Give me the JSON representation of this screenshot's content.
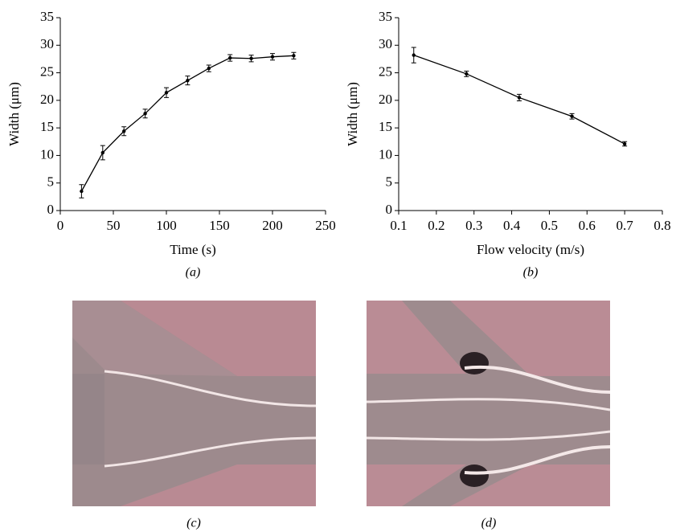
{
  "chart_data": [
    {
      "type": "line",
      "x_label": "Time (s)",
      "y_label": "Width (μm)",
      "caption": "(a)",
      "x": [
        20,
        40,
        60,
        80,
        100,
        120,
        140,
        160,
        180,
        200,
        220
      ],
      "values": [
        3.5,
        10.5,
        14.4,
        17.6,
        21.4,
        23.6,
        25.8,
        27.7,
        27.6,
        27.9,
        28.1
      ],
      "errors": [
        1.2,
        1.3,
        0.8,
        0.8,
        0.9,
        0.8,
        0.6,
        0.6,
        0.6,
        0.6,
        0.6
      ],
      "color": "#000000",
      "xlim": [
        0,
        250
      ],
      "xticks": [
        0,
        50,
        100,
        150,
        200,
        250
      ],
      "ylim": [
        0,
        35
      ],
      "yticks": [
        0,
        5,
        10,
        15,
        20,
        25,
        30,
        35
      ]
    },
    {
      "type": "line",
      "x_label": "Flow velocity (m/s)",
      "y_label": "Width (μm)",
      "caption": "(b)",
      "x": [
        0.14,
        0.28,
        0.42,
        0.56,
        0.7
      ],
      "values": [
        28.2,
        24.8,
        20.5,
        17.1,
        12.1
      ],
      "errors": [
        1.4,
        0.5,
        0.6,
        0.5,
        0.4
      ],
      "color": "#000000",
      "xlim": [
        0.1,
        0.8
      ],
      "xticks": [
        0.1,
        0.2,
        0.3,
        0.4,
        0.5,
        0.6,
        0.7,
        0.8
      ],
      "ylim": [
        0,
        35
      ],
      "yticks": [
        0,
        5,
        10,
        15,
        20,
        25,
        30,
        35
      ]
    }
  ],
  "panels": [
    {
      "caption": "(c)"
    },
    {
      "caption": "(d)"
    }
  ]
}
